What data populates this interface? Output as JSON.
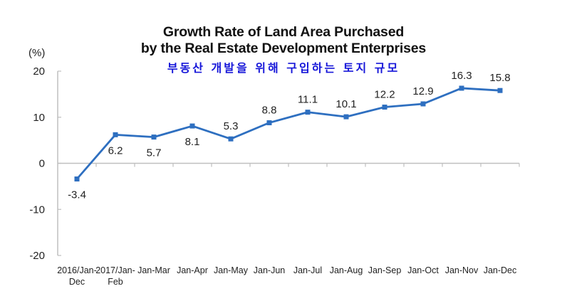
{
  "chart_data": {
    "type": "line",
    "title": "Growth Rate of Land Area Purchased by the Real Estate Development Enterprises",
    "title_lines": [
      "Growth Rate of Land Area Purchased",
      "by the Real Estate Development Enterprises"
    ],
    "subtitle": "부동산 개발을 위해 구입하는 토지 규모",
    "ylabel": "(%)",
    "xlabel": "",
    "ylim": [
      -20,
      20
    ],
    "yticks": [
      20,
      10,
      0,
      -10,
      -20
    ],
    "grid": false,
    "legend": "none",
    "categories": [
      [
        "2016/Jan-",
        "Dec"
      ],
      [
        "2017/Jan-",
        "Feb"
      ],
      [
        "Jan-Mar"
      ],
      [
        "Jan-Apr"
      ],
      [
        "Jan-May"
      ],
      [
        "Jan-Jun"
      ],
      [
        "Jan-Jul"
      ],
      [
        "Jan-Aug"
      ],
      [
        "Jan-Sep"
      ],
      [
        "Jan-Oct"
      ],
      [
        "Jan-Nov"
      ],
      [
        "Jan-Dec"
      ]
    ],
    "series": [
      {
        "name": "Growth Rate",
        "color": "#2e6fc0",
        "values": [
          -3.4,
          6.2,
          5.7,
          8.1,
          5.3,
          8.8,
          11.1,
          10.1,
          12.2,
          12.9,
          16.3,
          15.8
        ],
        "label_position": [
          "below",
          "below",
          "below",
          "below",
          "above",
          "above",
          "above",
          "above",
          "above",
          "above",
          "above",
          "above"
        ]
      }
    ]
  },
  "colors": {
    "line": "#2e6fc0",
    "axis": "#bfbfbf",
    "subtitle": "#1515d9"
  }
}
